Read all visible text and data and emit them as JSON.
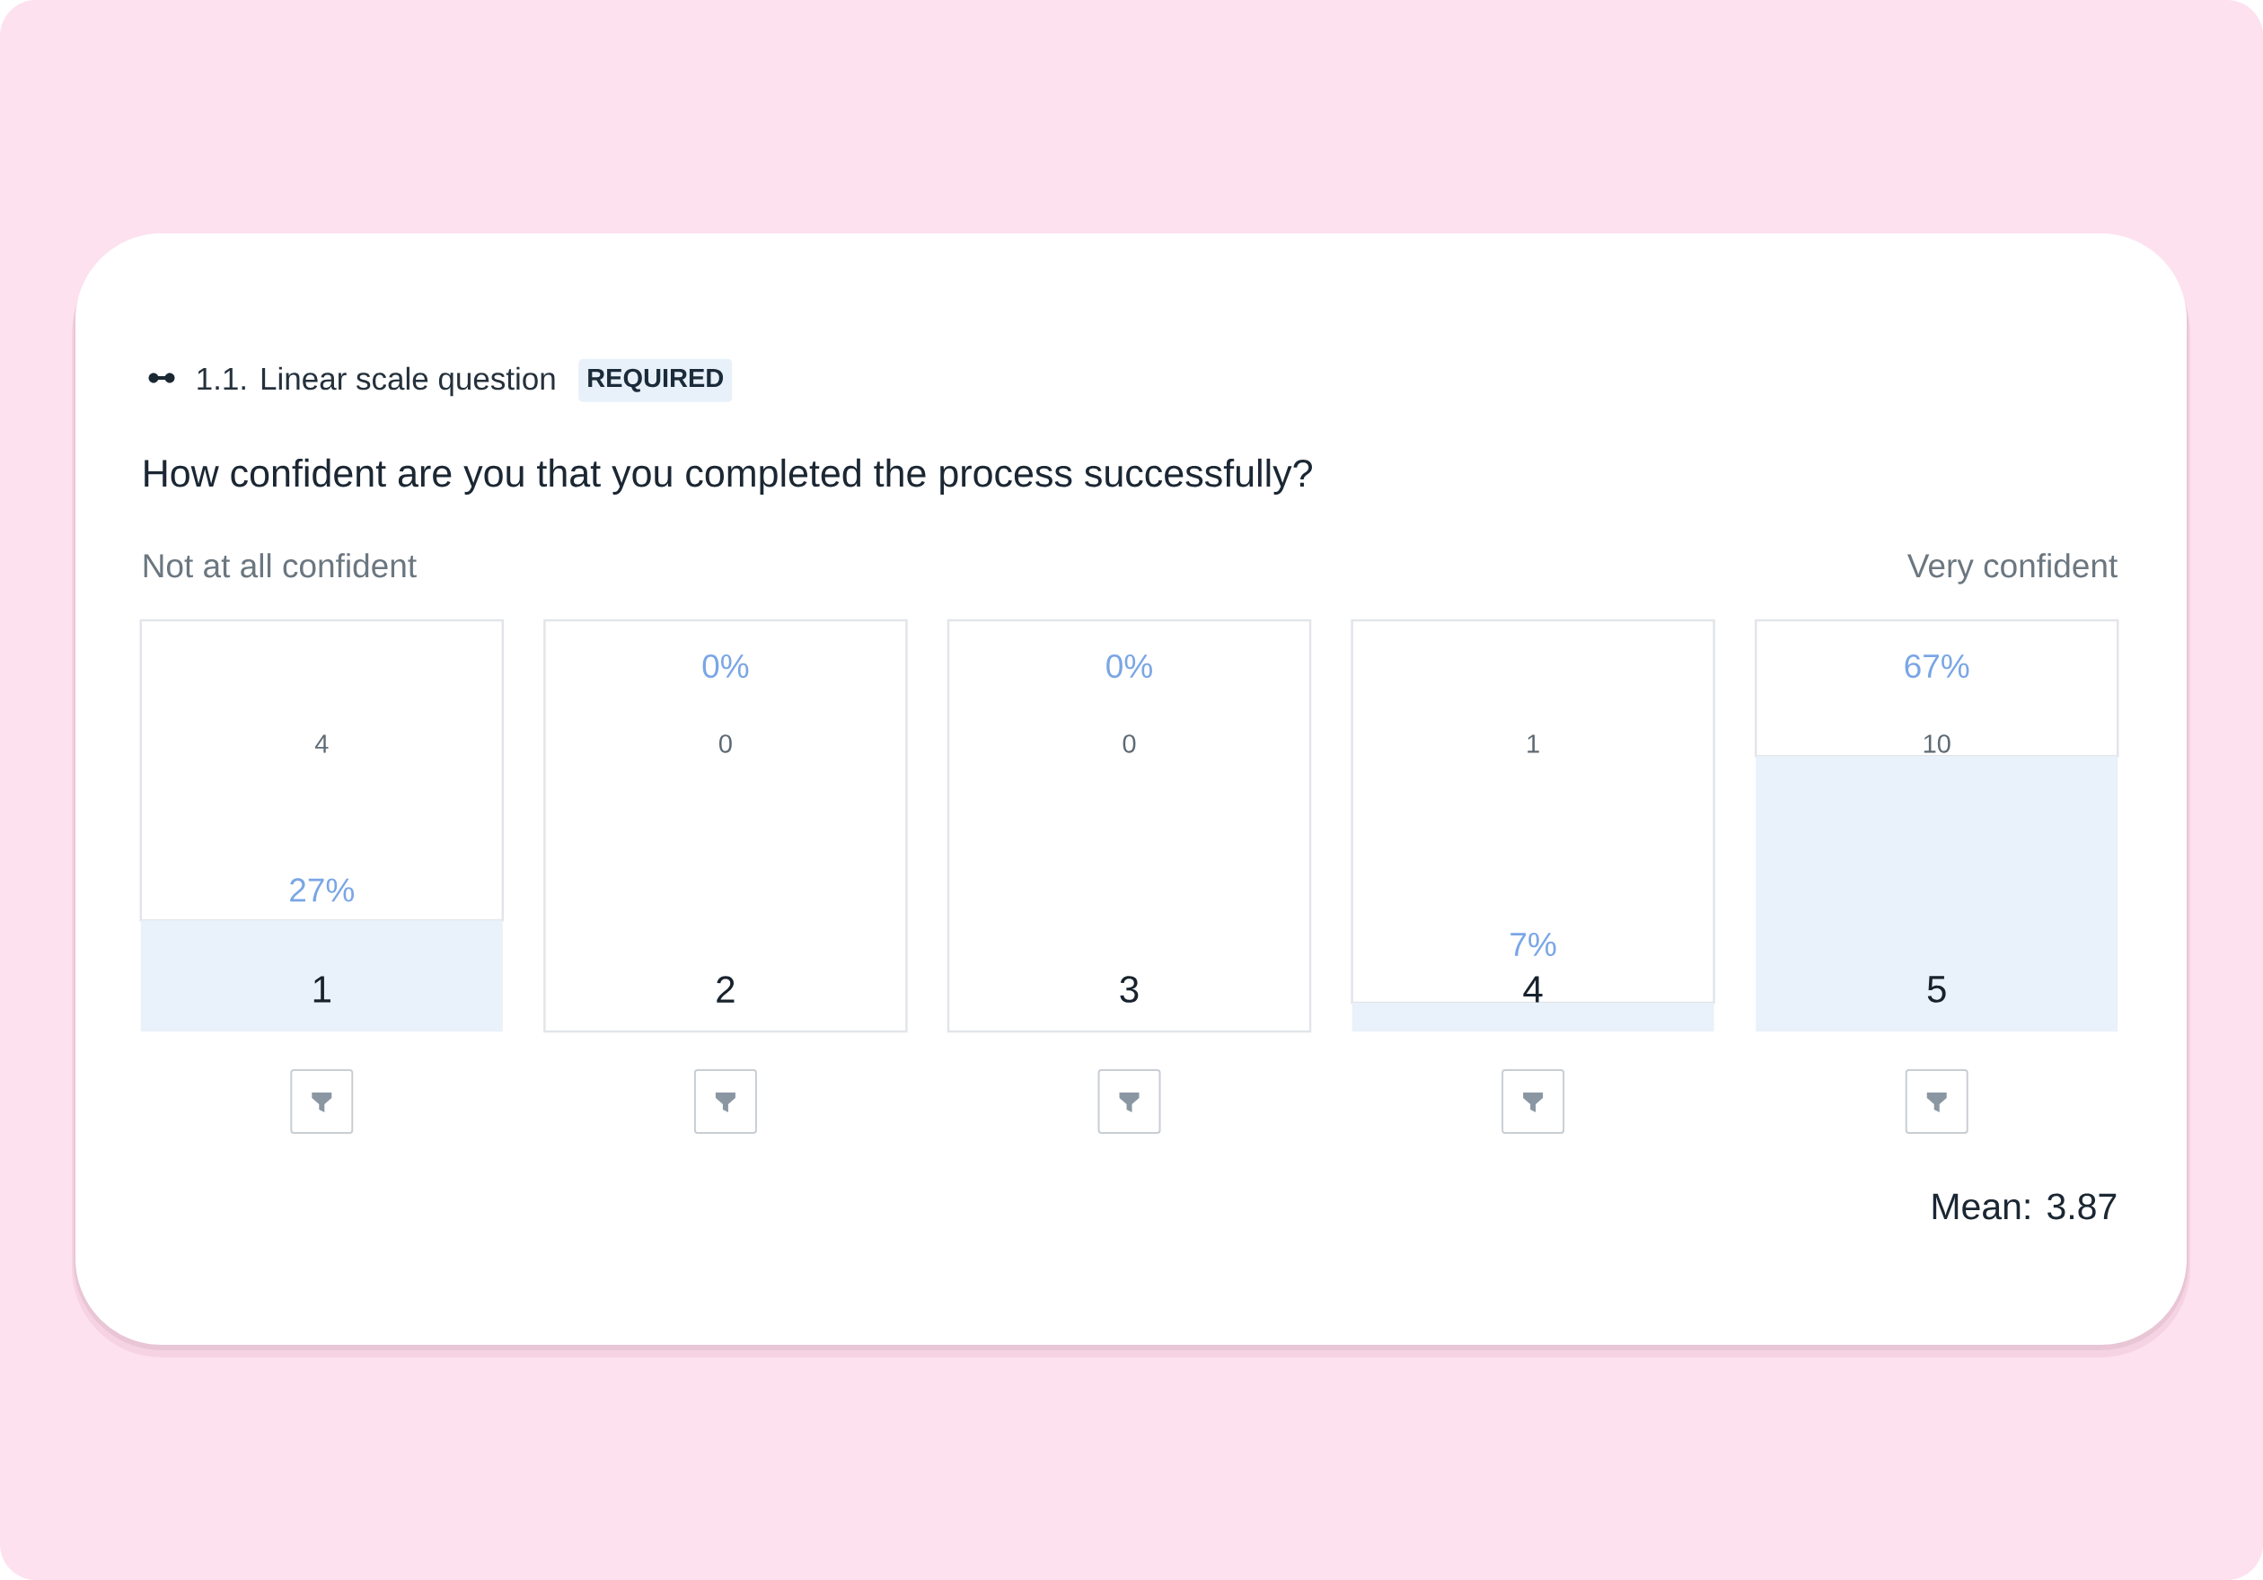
{
  "chart_data": {
    "type": "bar",
    "title": "How confident are you that you completed the process successfully?",
    "subtitle": "1.1. Linear scale question",
    "categories": [
      "1",
      "2",
      "3",
      "4",
      "5"
    ],
    "stacked": true,
    "series": [
      {
        "values": [
          27,
          0,
          0,
          7,
          67
        ],
        "color": "#e9f1fa",
        "value_labels": [
          "27%",
          "0%",
          "0%",
          "7%",
          "67%"
        ]
      },
      {
        "values": [
          73,
          100,
          100,
          93,
          33
        ],
        "color": "#ffffff"
      }
    ],
    "ylim": [
      0,
      100
    ],
    "tick_labels": "x",
    "annotations": [
      "REQUIRED",
      "Not at all confident",
      "Very confident",
      "4",
      "0",
      "0",
      "1",
      "10",
      "Mean: 3.87"
    ]
  }
}
